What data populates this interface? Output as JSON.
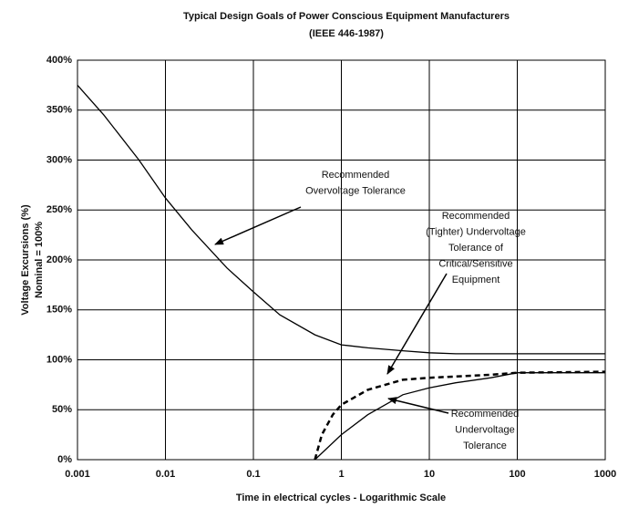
{
  "chart_data": {
    "type": "line",
    "title": "Typical Design Goals of Power Conscious Equipment Manufacturers",
    "subtitle": "(IEEE 446-1987)",
    "x_label": "Time in electrical cycles - Logarithmic Scale",
    "y_label": [
      "Voltage Excursions (%)",
      "Nominal = 100%"
    ],
    "x_log": true,
    "grid": true,
    "xlim": [
      0.001,
      1000
    ],
    "xticks": [
      0.001,
      0.01,
      0.1,
      1,
      10,
      100,
      1000
    ],
    "ylim": [
      0,
      400
    ],
    "yticks": [
      {
        "value": 0,
        "label": "0%"
      },
      {
        "value": 50,
        "label": "50%"
      },
      {
        "value": 100,
        "label": "100%"
      },
      {
        "value": 150,
        "label": "150%"
      },
      {
        "value": 200,
        "label": "200%"
      },
      {
        "value": 250,
        "label": "250%"
      },
      {
        "value": 300,
        "label": "300%"
      },
      {
        "value": 350,
        "label": "350%"
      },
      {
        "value": 400,
        "label": "400%"
      }
    ],
    "series": [
      {
        "color": "#000000",
        "dash": false,
        "x": [
          0.001,
          0.002,
          0.005,
          0.01,
          0.02,
          0.05,
          0.1,
          0.2,
          0.5,
          1,
          2,
          5,
          10,
          20,
          100,
          1000
        ],
        "values": [
          375,
          345,
          300,
          262,
          230,
          192,
          168,
          145,
          125,
          115,
          112,
          109,
          107,
          106,
          106,
          106
        ]
      },
      {
        "color": "#000000",
        "dash": true,
        "x": [
          0.5,
          0.6,
          0.8,
          1,
          2,
          5,
          10,
          50,
          100,
          1000
        ],
        "values": [
          0,
          25,
          45,
          55,
          70,
          80,
          82,
          85,
          87,
          88
        ]
      },
      {
        "color": "#000000",
        "dash": false,
        "x": [
          0.5,
          1,
          2,
          5,
          10,
          20,
          50,
          100,
          1000
        ],
        "values": [
          0,
          25,
          45,
          65,
          72,
          77,
          82,
          87,
          87
        ]
      }
    ],
    "annotations": [
      {
        "lines": [
          "Recommended",
          "Overvoltage Tolerance"
        ]
      },
      {
        "lines": [
          "Recommended",
          "(Tighter) Undervoltage",
          "Tolerance of",
          "Critical/Sensitive",
          "Equipment"
        ]
      },
      {
        "lines": [
          "Recommended",
          "Undervoltage",
          "Tolerance"
        ]
      }
    ]
  }
}
